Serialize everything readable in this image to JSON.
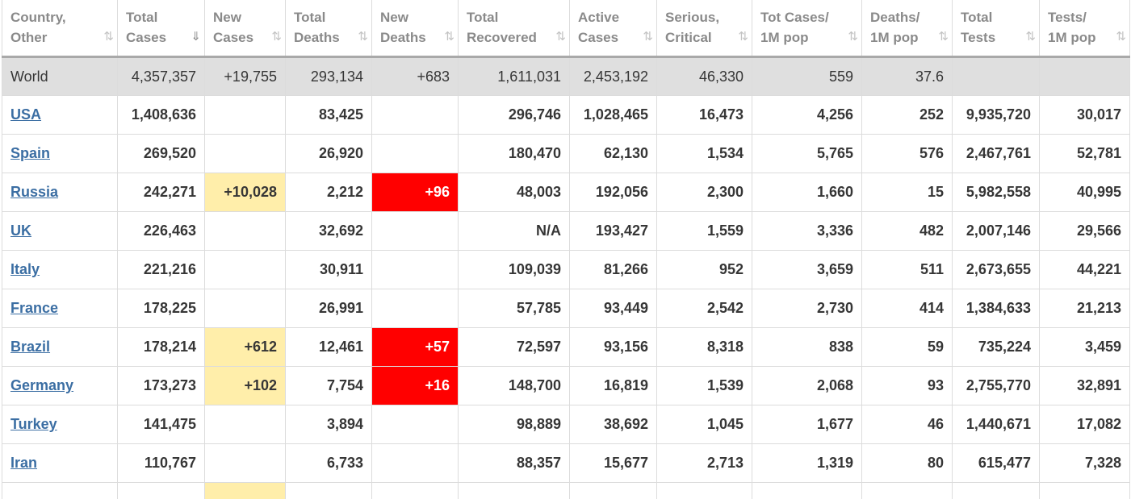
{
  "headers": [
    {
      "line1": "Country,",
      "line2": "Other",
      "sort": "⇅",
      "active": false
    },
    {
      "line1": "Total",
      "line2": "Cases",
      "sort": "⇓",
      "active": true
    },
    {
      "line1": "New",
      "line2": "Cases",
      "sort": "⇅",
      "active": false
    },
    {
      "line1": "Total",
      "line2": "Deaths",
      "sort": "⇅",
      "active": false
    },
    {
      "line1": "New",
      "line2": "Deaths",
      "sort": "⇅",
      "active": false
    },
    {
      "line1": "Total",
      "line2": "Recovered",
      "sort": "⇅",
      "active": false
    },
    {
      "line1": "Active",
      "line2": "Cases",
      "sort": "⇅",
      "active": false
    },
    {
      "line1": "Serious,",
      "line2": "Critical",
      "sort": "⇅",
      "active": false
    },
    {
      "line1": "Tot Cases/",
      "line2": "1M pop",
      "sort": "⇅",
      "active": false
    },
    {
      "line1": "Deaths/",
      "line2": "1M pop",
      "sort": "⇅",
      "active": false
    },
    {
      "line1": "Total",
      "line2": "Tests",
      "sort": "⇅",
      "active": false
    },
    {
      "line1": "Tests/",
      "line2": "1M pop",
      "sort": "⇅",
      "active": false
    }
  ],
  "world": {
    "country": "World",
    "total_cases": "4,357,357",
    "new_cases": "+19,755",
    "total_deaths": "293,134",
    "new_deaths": "+683",
    "total_recovered": "1,611,031",
    "active_cases": "2,453,192",
    "serious": "46,330",
    "cases_per_1m": "559",
    "deaths_per_1m": "37.6",
    "total_tests": "",
    "tests_per_1m": ""
  },
  "rows": [
    {
      "country": "USA",
      "total_cases": "1,408,636",
      "new_cases": "",
      "total_deaths": "83,425",
      "new_deaths": "",
      "total_recovered": "296,746",
      "active_cases": "1,028,465",
      "serious": "16,473",
      "cases_per_1m": "4,256",
      "deaths_per_1m": "252",
      "total_tests": "9,935,720",
      "tests_per_1m": "30,017"
    },
    {
      "country": "Spain",
      "total_cases": "269,520",
      "new_cases": "",
      "total_deaths": "26,920",
      "new_deaths": "",
      "total_recovered": "180,470",
      "active_cases": "62,130",
      "serious": "1,534",
      "cases_per_1m": "5,765",
      "deaths_per_1m": "576",
      "total_tests": "2,467,761",
      "tests_per_1m": "52,781"
    },
    {
      "country": "Russia",
      "total_cases": "242,271",
      "new_cases": "+10,028",
      "total_deaths": "2,212",
      "new_deaths": "+96",
      "total_recovered": "48,003",
      "active_cases": "192,056",
      "serious": "2,300",
      "cases_per_1m": "1,660",
      "deaths_per_1m": "15",
      "total_tests": "5,982,558",
      "tests_per_1m": "40,995"
    },
    {
      "country": "UK",
      "total_cases": "226,463",
      "new_cases": "",
      "total_deaths": "32,692",
      "new_deaths": "",
      "total_recovered": "N/A",
      "active_cases": "193,427",
      "serious": "1,559",
      "cases_per_1m": "3,336",
      "deaths_per_1m": "482",
      "total_tests": "2,007,146",
      "tests_per_1m": "29,566"
    },
    {
      "country": "Italy",
      "total_cases": "221,216",
      "new_cases": "",
      "total_deaths": "30,911",
      "new_deaths": "",
      "total_recovered": "109,039",
      "active_cases": "81,266",
      "serious": "952",
      "cases_per_1m": "3,659",
      "deaths_per_1m": "511",
      "total_tests": "2,673,655",
      "tests_per_1m": "44,221"
    },
    {
      "country": "France",
      "total_cases": "178,225",
      "new_cases": "",
      "total_deaths": "26,991",
      "new_deaths": "",
      "total_recovered": "57,785",
      "active_cases": "93,449",
      "serious": "2,542",
      "cases_per_1m": "2,730",
      "deaths_per_1m": "414",
      "total_tests": "1,384,633",
      "tests_per_1m": "21,213"
    },
    {
      "country": "Brazil",
      "total_cases": "178,214",
      "new_cases": "+612",
      "total_deaths": "12,461",
      "new_deaths": "+57",
      "total_recovered": "72,597",
      "active_cases": "93,156",
      "serious": "8,318",
      "cases_per_1m": "838",
      "deaths_per_1m": "59",
      "total_tests": "735,224",
      "tests_per_1m": "3,459"
    },
    {
      "country": "Germany",
      "total_cases": "173,273",
      "new_cases": "+102",
      "total_deaths": "7,754",
      "new_deaths": "+16",
      "total_recovered": "148,700",
      "active_cases": "16,819",
      "serious": "1,539",
      "cases_per_1m": "2,068",
      "deaths_per_1m": "93",
      "total_tests": "2,755,770",
      "tests_per_1m": "32,891"
    },
    {
      "country": "Turkey",
      "total_cases": "141,475",
      "new_cases": "",
      "total_deaths": "3,894",
      "new_deaths": "",
      "total_recovered": "98,889",
      "active_cases": "38,692",
      "serious": "1,045",
      "cases_per_1m": "1,677",
      "deaths_per_1m": "46",
      "total_tests": "1,440,671",
      "tests_per_1m": "17,082"
    },
    {
      "country": "Iran",
      "total_cases": "110,767",
      "new_cases": "",
      "total_deaths": "6,733",
      "new_deaths": "",
      "total_recovered": "88,357",
      "active_cases": "15,677",
      "serious": "2,713",
      "cases_per_1m": "1,319",
      "deaths_per_1m": "80",
      "total_tests": "615,477",
      "tests_per_1m": "7,328"
    }
  ],
  "colors": {
    "new_cases_highlight": "#ffeeaa",
    "new_deaths_highlight": "#ff0000",
    "link": "#3b6ea3",
    "world_row_bg": "#dfdfdf"
  }
}
